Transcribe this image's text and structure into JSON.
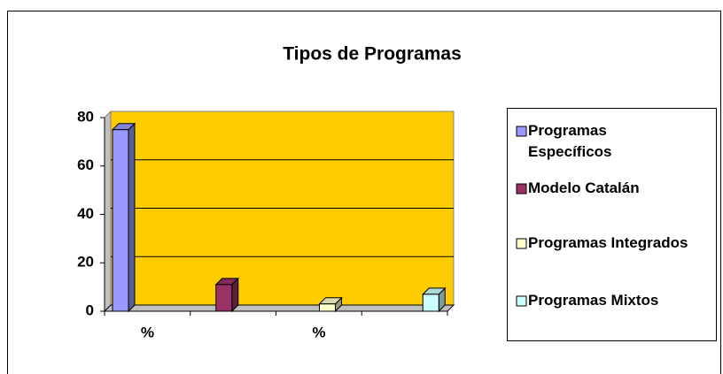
{
  "chart_data": {
    "type": "bar",
    "title": "Tipos de Programas",
    "categories": [
      "%",
      null,
      "%",
      null
    ],
    "series": [
      {
        "name": "Programas Específicos",
        "color": "#9999ff",
        "values": [
          75,
          null,
          null,
          null
        ]
      },
      {
        "name": "Modelo Catalán",
        "color": "#993366",
        "values": [
          null,
          11,
          null,
          null
        ]
      },
      {
        "name": "Programas Integrados",
        "color": "#ffffcc",
        "values": [
          null,
          null,
          3,
          null
        ]
      },
      {
        "name": "Programas Mixtos",
        "color": "#ccffff",
        "values": [
          null,
          null,
          null,
          7
        ]
      }
    ],
    "ylim": [
      0,
      80
    ],
    "yticks": [
      0,
      20,
      40,
      60,
      80
    ],
    "grid": true,
    "legend": "right",
    "background": "#ffcc00"
  }
}
